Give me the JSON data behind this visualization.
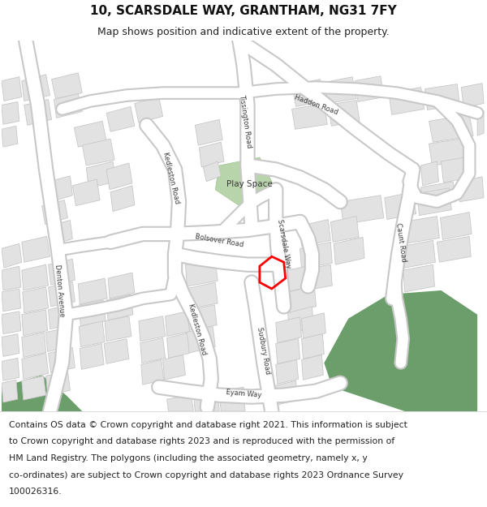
{
  "title_line1": "10, SCARSDALE WAY, GRANTHAM, NG31 7FY",
  "title_line2": "Map shows position and indicative extent of the property.",
  "footer_lines": [
    "Contains OS data © Crown copyright and database right 2021. This information is subject",
    "to Crown copyright and database rights 2023 and is reproduced with the permission of",
    "HM Land Registry. The polygons (including the associated geometry, namely x, y",
    "co-ordinates) are subject to Crown copyright and database rights 2023 Ordnance Survey",
    "100026316."
  ],
  "bg_color": "#f5f5f5",
  "road_fill": "#ffffff",
  "road_edge": "#c8c8c8",
  "bldg_fill": "#e2e2e2",
  "bldg_edge": "#c8c8c8",
  "park_fill": "#b8d4aa",
  "green_fill": "#6b9e6b",
  "property_color": "#ff0000",
  "text_color": "#3a3a3a",
  "title_fs": 11,
  "subtitle_fs": 9,
  "footer_fs": 7.8,
  "label_fs": 6.0,
  "figsize": [
    6.0,
    6.25
  ],
  "dpi": 100
}
